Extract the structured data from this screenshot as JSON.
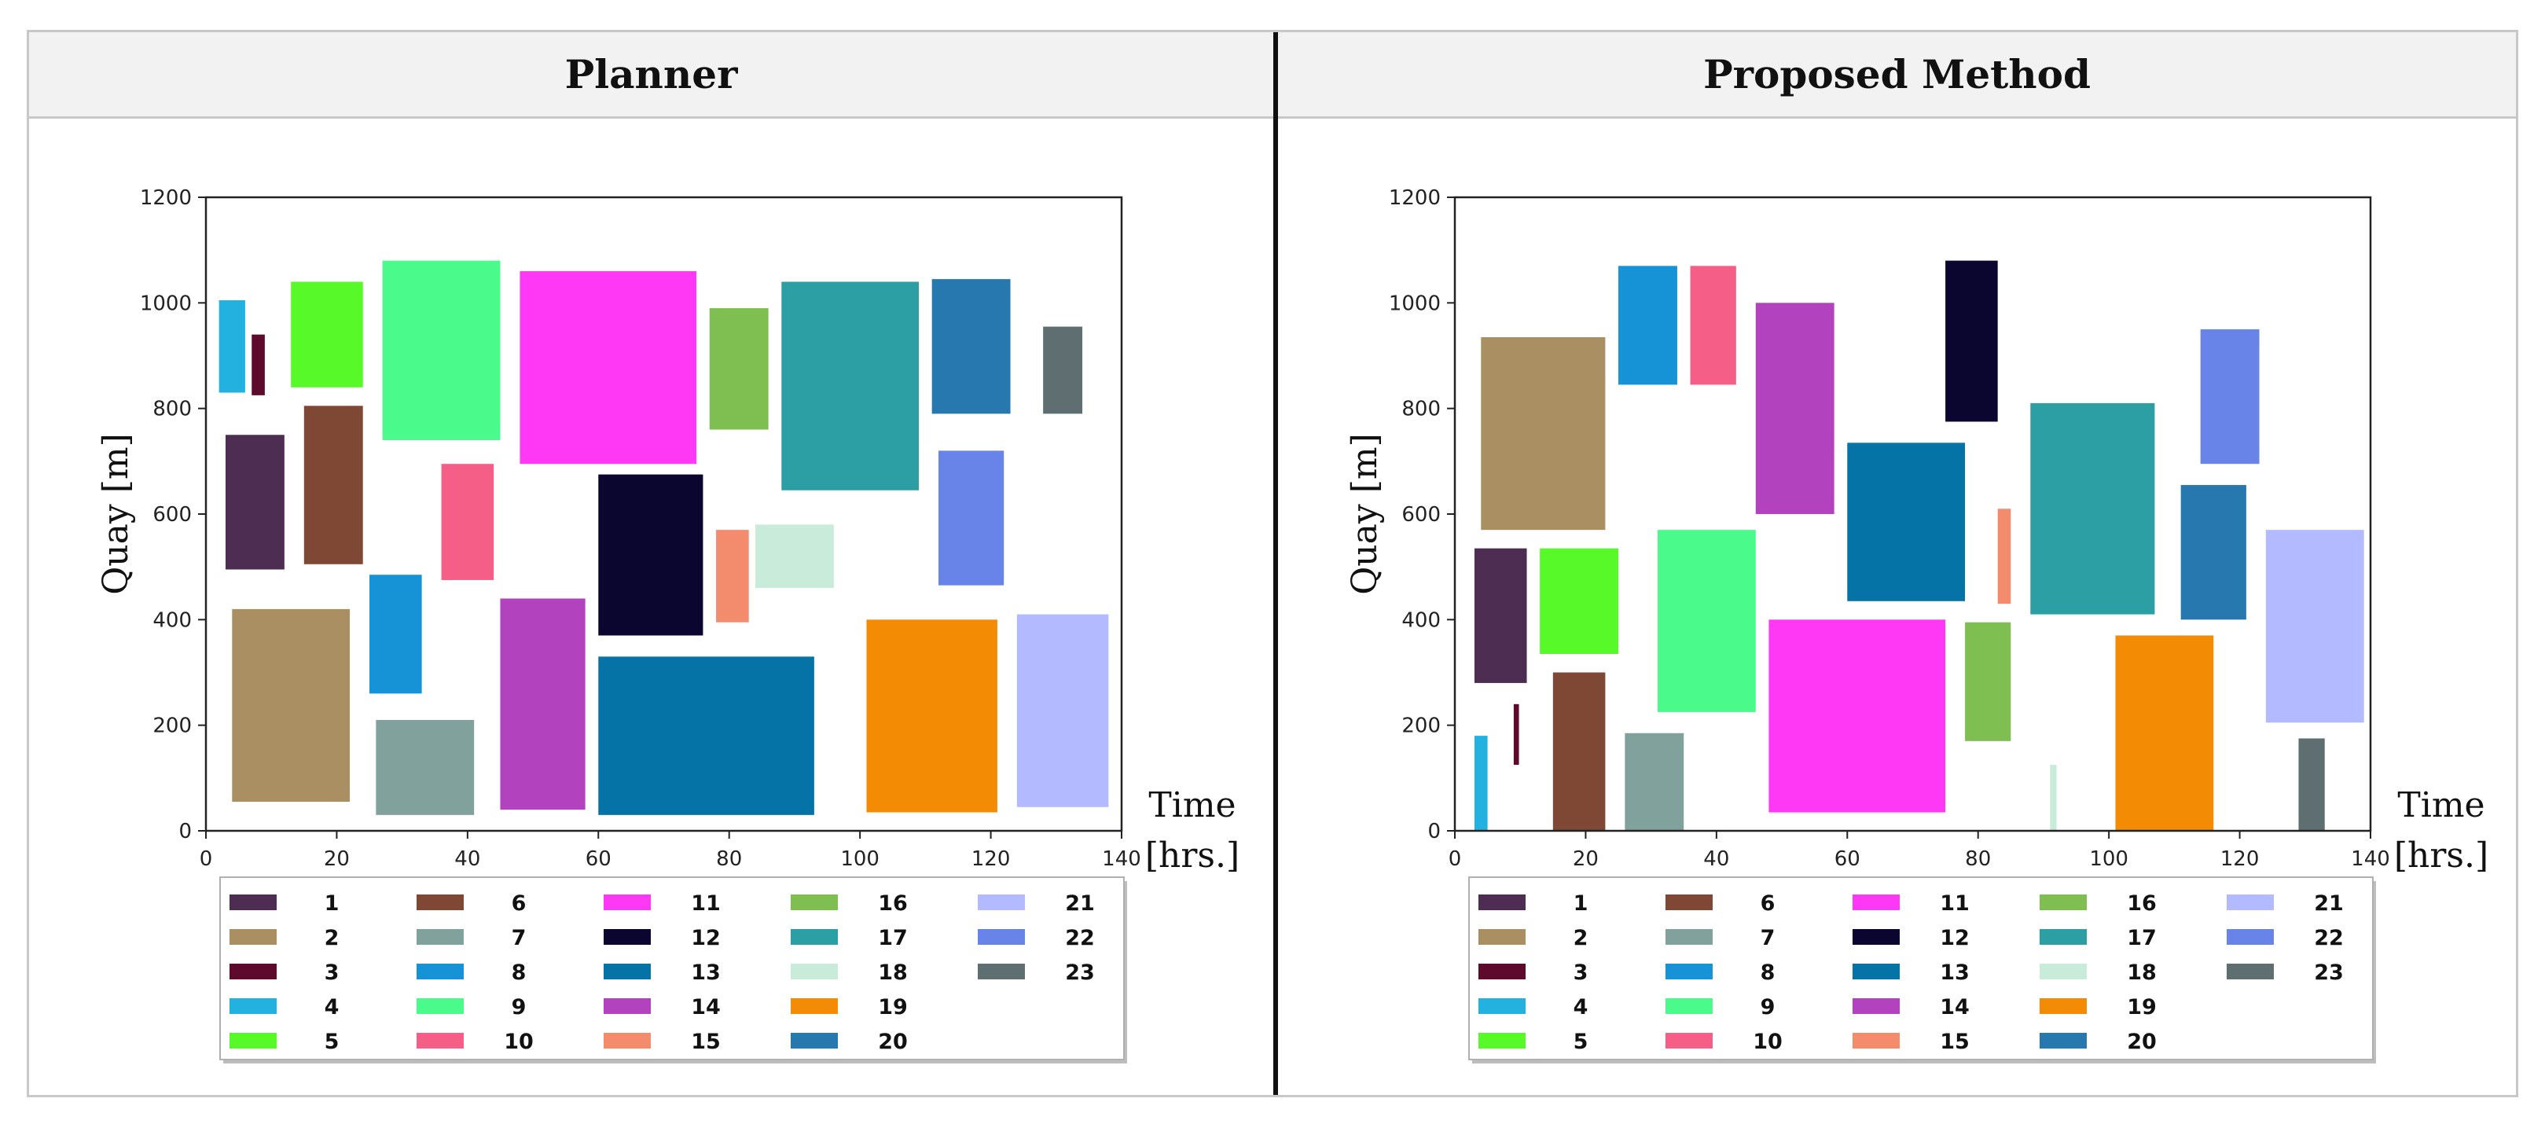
{
  "headers": {
    "left": "Planner",
    "right": "Proposed Method"
  },
  "colors": {
    "1": "#4d2d52",
    "2": "#a98f62",
    "3": "#5e0a2c",
    "4": "#23b1e0",
    "5": "#57fa28",
    "6": "#7f4834",
    "7": "#81a19d",
    "8": "#1593d6",
    "9": "#4afa8b",
    "10": "#f55f87",
    "11": "#ff38f5",
    "12": "#0b0630",
    "13": "#0573a5",
    "14": "#b242bd",
    "15": "#f38b6d",
    "16": "#7fbf52",
    "17": "#2b9fa4",
    "18": "#c8ecd9",
    "19": "#f38b05",
    "20": "#2878b0",
    "21": "#b3baff",
    "22": "#6884e8",
    "23": "#5f6e70"
  },
  "chart_data": [
    {
      "type": "rectangles",
      "title": "Planner",
      "xlabel": "Time\n[hrs.]",
      "ylabel": "Quay [m]",
      "xlim": [
        0,
        140
      ],
      "ylim": [
        0,
        1200
      ],
      "xticks": [
        0,
        20,
        40,
        60,
        80,
        100,
        120,
        140
      ],
      "yticks": [
        0,
        200,
        400,
        600,
        800,
        1000,
        1200
      ],
      "legend": [
        "1",
        "2",
        "3",
        "4",
        "5",
        "6",
        "7",
        "8",
        "9",
        "10",
        "11",
        "12",
        "13",
        "14",
        "15",
        "16",
        "17",
        "18",
        "19",
        "20",
        "21",
        "22",
        "23"
      ],
      "blocks": [
        {
          "id": "1",
          "t_start": 3,
          "t_end": 12,
          "q_start": 495,
          "q_end": 750
        },
        {
          "id": "2",
          "t_start": 4,
          "t_end": 22,
          "q_start": 55,
          "q_end": 420
        },
        {
          "id": "3",
          "t_start": 7,
          "t_end": 9,
          "q_start": 825,
          "q_end": 940
        },
        {
          "id": "4",
          "t_start": 2,
          "t_end": 6,
          "q_start": 830,
          "q_end": 1005
        },
        {
          "id": "5",
          "t_start": 13,
          "t_end": 24,
          "q_start": 840,
          "q_end": 1040
        },
        {
          "id": "6",
          "t_start": 15,
          "t_end": 24,
          "q_start": 505,
          "q_end": 805
        },
        {
          "id": "7",
          "t_start": 26,
          "t_end": 41,
          "q_start": 30,
          "q_end": 210
        },
        {
          "id": "8",
          "t_start": 25,
          "t_end": 33,
          "q_start": 260,
          "q_end": 485
        },
        {
          "id": "9",
          "t_start": 27,
          "t_end": 45,
          "q_start": 740,
          "q_end": 1080
        },
        {
          "id": "10",
          "t_start": 36,
          "t_end": 44,
          "q_start": 475,
          "q_end": 695
        },
        {
          "id": "11",
          "t_start": 48,
          "t_end": 75,
          "q_start": 695,
          "q_end": 1060
        },
        {
          "id": "12",
          "t_start": 60,
          "t_end": 76,
          "q_start": 370,
          "q_end": 675
        },
        {
          "id": "13",
          "t_start": 60,
          "t_end": 93,
          "q_start": 30,
          "q_end": 330
        },
        {
          "id": "14",
          "t_start": 45,
          "t_end": 58,
          "q_start": 40,
          "q_end": 440
        },
        {
          "id": "15",
          "t_start": 78,
          "t_end": 83,
          "q_start": 395,
          "q_end": 570
        },
        {
          "id": "16",
          "t_start": 77,
          "t_end": 86,
          "q_start": 760,
          "q_end": 990
        },
        {
          "id": "17",
          "t_start": 88,
          "t_end": 109,
          "q_start": 645,
          "q_end": 1040
        },
        {
          "id": "18",
          "t_start": 84,
          "t_end": 96,
          "q_start": 460,
          "q_end": 580
        },
        {
          "id": "19",
          "t_start": 101,
          "t_end": 121,
          "q_start": 35,
          "q_end": 400
        },
        {
          "id": "20",
          "t_start": 111,
          "t_end": 123,
          "q_start": 790,
          "q_end": 1045
        },
        {
          "id": "21",
          "t_start": 124,
          "t_end": 138,
          "q_start": 45,
          "q_end": 410
        },
        {
          "id": "22",
          "t_start": 112,
          "t_end": 122,
          "q_start": 465,
          "q_end": 720
        },
        {
          "id": "23",
          "t_start": 128,
          "t_end": 134,
          "q_start": 790,
          "q_end": 955
        }
      ]
    },
    {
      "type": "rectangles",
      "title": "Proposed Method",
      "xlabel": "Time\n[hrs.]",
      "ylabel": "Quay [m]",
      "xlim": [
        0,
        140
      ],
      "ylim": [
        0,
        1200
      ],
      "xticks": [
        0,
        20,
        40,
        60,
        80,
        100,
        120,
        140
      ],
      "yticks": [
        0,
        200,
        400,
        600,
        800,
        1000,
        1200
      ],
      "legend": [
        "1",
        "2",
        "3",
        "4",
        "5",
        "6",
        "7",
        "8",
        "9",
        "10",
        "11",
        "12",
        "13",
        "14",
        "15",
        "16",
        "17",
        "18",
        "19",
        "20",
        "21",
        "22",
        "23"
      ],
      "blocks": [
        {
          "id": "1",
          "t_start": 3,
          "t_end": 11,
          "q_start": 280,
          "q_end": 535
        },
        {
          "id": "2",
          "t_start": 4,
          "t_end": 23,
          "q_start": 570,
          "q_end": 935
        },
        {
          "id": "3",
          "t_start": 9,
          "t_end": 9.8,
          "q_start": 125,
          "q_end": 240
        },
        {
          "id": "4",
          "t_start": 3,
          "t_end": 5,
          "q_start": 0,
          "q_end": 180
        },
        {
          "id": "5",
          "t_start": 13,
          "t_end": 25,
          "q_start": 335,
          "q_end": 535
        },
        {
          "id": "6",
          "t_start": 15,
          "t_end": 23,
          "q_start": 0,
          "q_end": 300
        },
        {
          "id": "7",
          "t_start": 26,
          "t_end": 35,
          "q_start": 0,
          "q_end": 185
        },
        {
          "id": "8",
          "t_start": 25,
          "t_end": 34,
          "q_start": 845,
          "q_end": 1070
        },
        {
          "id": "9",
          "t_start": 31,
          "t_end": 46,
          "q_start": 225,
          "q_end": 570
        },
        {
          "id": "10",
          "t_start": 36,
          "t_end": 43,
          "q_start": 845,
          "q_end": 1070
        },
        {
          "id": "11",
          "t_start": 48,
          "t_end": 75,
          "q_start": 35,
          "q_end": 400
        },
        {
          "id": "12",
          "t_start": 75,
          "t_end": 83,
          "q_start": 775,
          "q_end": 1080
        },
        {
          "id": "13",
          "t_start": 60,
          "t_end": 78,
          "q_start": 435,
          "q_end": 735
        },
        {
          "id": "14",
          "t_start": 46,
          "t_end": 58,
          "q_start": 600,
          "q_end": 1000
        },
        {
          "id": "15",
          "t_start": 83,
          "t_end": 85,
          "q_start": 430,
          "q_end": 610
        },
        {
          "id": "16",
          "t_start": 78,
          "t_end": 85,
          "q_start": 170,
          "q_end": 395
        },
        {
          "id": "17",
          "t_start": 88,
          "t_end": 107,
          "q_start": 410,
          "q_end": 810
        },
        {
          "id": "18",
          "t_start": 91,
          "t_end": 92,
          "q_start": 0,
          "q_end": 125
        },
        {
          "id": "19",
          "t_start": 101,
          "t_end": 116,
          "q_start": 0,
          "q_end": 370
        },
        {
          "id": "20",
          "t_start": 111,
          "t_end": 121,
          "q_start": 400,
          "q_end": 655
        },
        {
          "id": "21",
          "t_start": 124,
          "t_end": 139,
          "q_start": 205,
          "q_end": 570
        },
        {
          "id": "22",
          "t_start": 114,
          "t_end": 123,
          "q_start": 695,
          "q_end": 950
        },
        {
          "id": "23",
          "t_start": 129,
          "t_end": 133,
          "q_start": 0,
          "q_end": 175
        }
      ]
    }
  ]
}
